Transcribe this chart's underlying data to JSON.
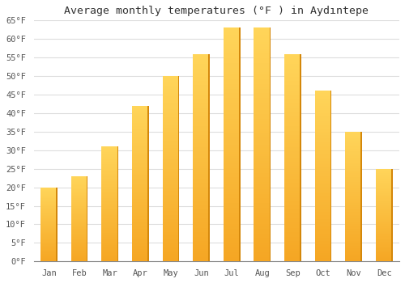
{
  "title": "Average monthly temperatures (°F ) in Aydıntepe",
  "months": [
    "Jan",
    "Feb",
    "Mar",
    "Apr",
    "May",
    "Jun",
    "Jul",
    "Aug",
    "Sep",
    "Oct",
    "Nov",
    "Dec"
  ],
  "values": [
    20,
    23,
    31,
    42,
    50,
    56,
    63,
    63,
    56,
    46,
    35,
    25
  ],
  "bar_color_main": "#FFA500",
  "bar_color_top": "#FFD04B",
  "bar_color_edge": "#E08000",
  "background_color": "#ffffff",
  "grid_color": "#dddddd",
  "ylim": [
    0,
    65
  ],
  "yticks": [
    0,
    5,
    10,
    15,
    20,
    25,
    30,
    35,
    40,
    45,
    50,
    55,
    60,
    65
  ],
  "title_fontsize": 9.5,
  "tick_fontsize": 7.5,
  "bar_width": 0.55
}
